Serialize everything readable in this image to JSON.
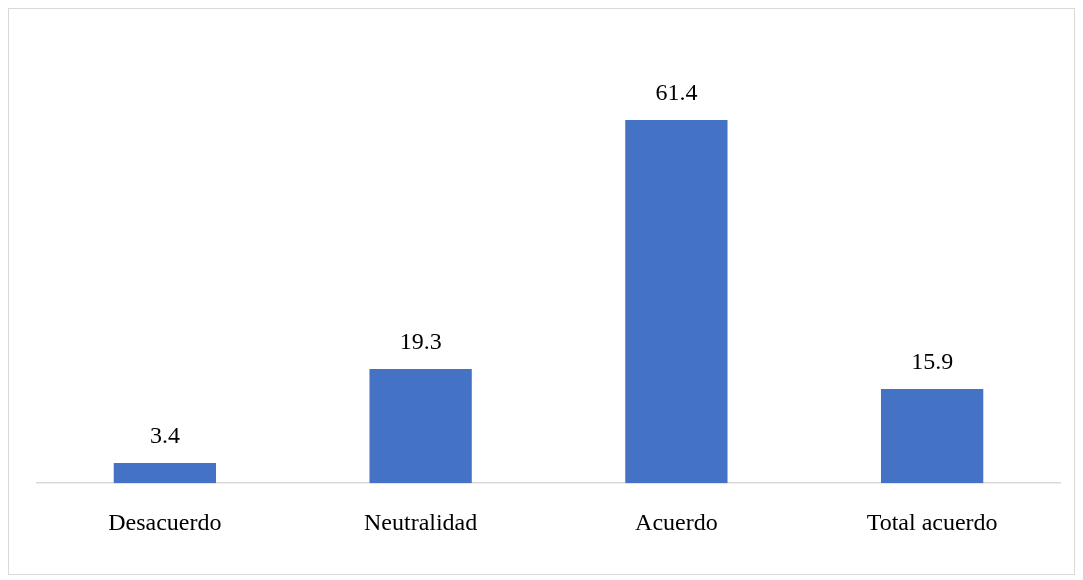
{
  "chart_data": {
    "type": "bar",
    "categories": [
      "Desacuerdo",
      "Neutralidad",
      "Acuerdo",
      "Total acuerdo"
    ],
    "values": [
      3.4,
      19.3,
      61.4,
      15.9
    ],
    "color": "#4472c4",
    "data_labels": true,
    "grid": false,
    "legend": false
  }
}
